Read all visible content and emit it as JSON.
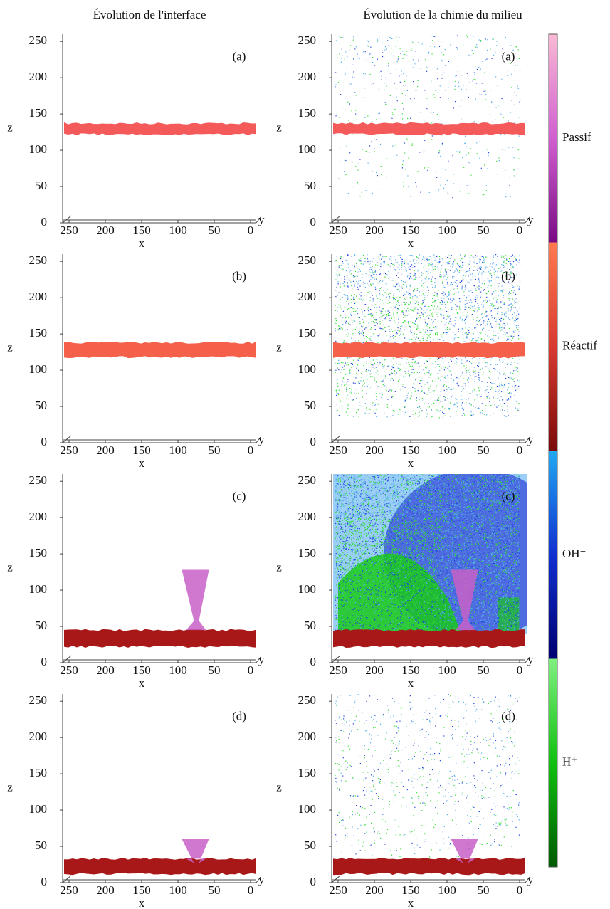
{
  "column_titles": [
    "Évolution de l'interface",
    "Évolution de la chimie du milieu"
  ],
  "colorbar": {
    "segments": [
      {
        "label": "Passif",
        "colors": [
          "#f9b9d4",
          "#d060d0",
          "#7a0a84"
        ]
      },
      {
        "label": "Réactif",
        "colors": [
          "#ff7a50",
          "#d83a30",
          "#7a0a0a"
        ]
      },
      {
        "label": "OH⁻",
        "colors": [
          "#20aaf2",
          "#1030d0",
          "#000070"
        ]
      },
      {
        "label": "H⁺",
        "colors": [
          "#80f080",
          "#10c010",
          "#005a00"
        ]
      }
    ]
  },
  "chart_data": [
    {
      "type": "interface",
      "label": "(a)",
      "xlabel": "x",
      "ylabel": "z",
      "depth_label": "y",
      "xlim": [
        250,
        0
      ],
      "xticks": [
        250,
        200,
        150,
        100,
        50,
        0
      ],
      "ylim": [
        0,
        260
      ],
      "yticks": [
        0,
        50,
        100,
        150,
        200,
        250
      ],
      "interface_z": [
        122,
        137
      ],
      "color": "#f45a5a"
    },
    {
      "type": "chemistry",
      "label": "(a)",
      "xlabel": "x",
      "ylabel": "z",
      "depth_label": "y",
      "xlim": [
        250,
        0
      ],
      "xticks": [
        250,
        200,
        150,
        100,
        50,
        0
      ],
      "ylim": [
        0,
        260
      ],
      "yticks": [
        0,
        50,
        100,
        150,
        200,
        250
      ],
      "interface_z": [
        122,
        137
      ],
      "color": "#f45a5a"
    },
    {
      "type": "interface",
      "label": "(b)",
      "xlabel": "x",
      "ylabel": "z",
      "depth_label": "y",
      "xlim": [
        250,
        0
      ],
      "xticks": [
        250,
        200,
        150,
        100,
        50,
        0
      ],
      "ylim": [
        0,
        260
      ],
      "yticks": [
        0,
        50,
        100,
        150,
        200,
        250
      ],
      "interface_z": [
        118,
        138
      ],
      "color": "#f4604a"
    },
    {
      "type": "chemistry",
      "label": "(b)",
      "xlabel": "x",
      "ylabel": "z",
      "depth_label": "y",
      "xlim": [
        250,
        0
      ],
      "xticks": [
        250,
        200,
        150,
        100,
        50,
        0
      ],
      "ylim": [
        0,
        260
      ],
      "yticks": [
        0,
        50,
        100,
        150,
        200,
        250
      ],
      "interface_z": [
        118,
        138
      ],
      "color": "#f4604a"
    },
    {
      "type": "interface",
      "label": "(c)",
      "xlabel": "x",
      "ylabel": "z",
      "depth_label": "y",
      "xlim": [
        250,
        0
      ],
      "xticks": [
        250,
        200,
        150,
        100,
        50,
        0
      ],
      "ylim": [
        0,
        260
      ],
      "yticks": [
        0,
        50,
        100,
        150,
        200,
        250
      ],
      "interface_z": [
        22,
        45
      ],
      "color": "#a81818",
      "peak": {
        "x": 75,
        "z": 128
      }
    },
    {
      "type": "chemistry",
      "label": "(c)",
      "xlabel": "x",
      "ylabel": "z",
      "depth_label": "y",
      "xlim": [
        250,
        0
      ],
      "xticks": [
        250,
        200,
        150,
        100,
        50,
        0
      ],
      "ylim": [
        0,
        260
      ],
      "yticks": [
        0,
        50,
        100,
        150,
        200,
        250
      ],
      "interface_z": [
        22,
        45
      ],
      "color": "#a81818",
      "peak": {
        "x": 75,
        "z": 128
      }
    },
    {
      "type": "interface",
      "label": "(d)",
      "xlabel": "x",
      "ylabel": "z",
      "depth_label": "y",
      "xlim": [
        250,
        0
      ],
      "xticks": [
        250,
        200,
        150,
        100,
        50,
        0
      ],
      "ylim": [
        0,
        260
      ],
      "yticks": [
        0,
        50,
        100,
        150,
        200,
        250
      ],
      "interface_z": [
        12,
        33
      ],
      "color": "#a81818",
      "peak": {
        "x": 75,
        "z": 60
      }
    },
    {
      "type": "chemistry",
      "label": "(d)",
      "xlabel": "x",
      "ylabel": "z",
      "depth_label": "y",
      "xlim": [
        250,
        0
      ],
      "xticks": [
        250,
        200,
        150,
        100,
        50,
        0
      ],
      "ylim": [
        0,
        260
      ],
      "yticks": [
        0,
        50,
        100,
        150,
        200,
        250
      ],
      "interface_z": [
        12,
        33
      ],
      "color": "#a81818",
      "peak": {
        "x": 75,
        "z": 60
      }
    }
  ]
}
